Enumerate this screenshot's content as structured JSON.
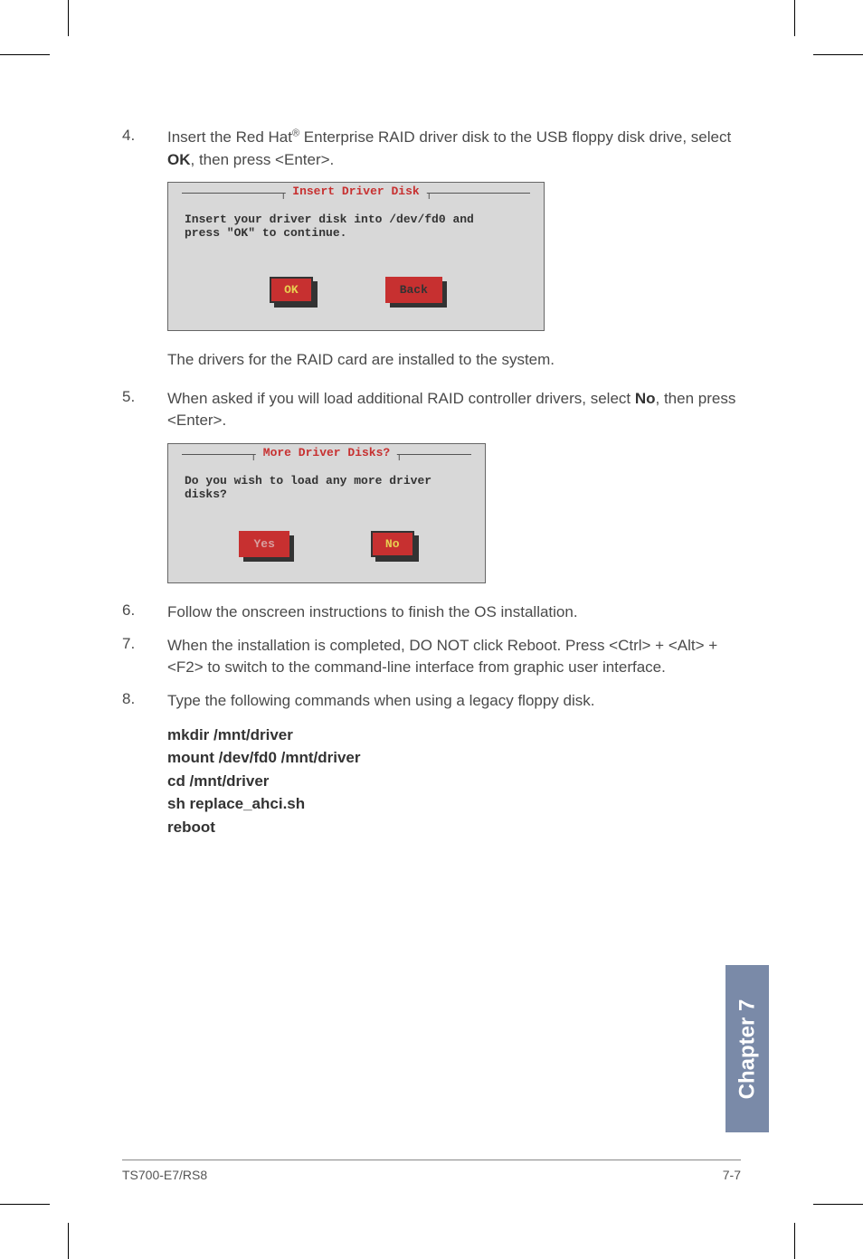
{
  "step4": {
    "num": "4.",
    "text_before": "Insert the Red Hat",
    "reg": "®",
    "text_mid": " Enterprise RAID driver disk to the USB floppy disk drive, select ",
    "bold": "OK",
    "text_after": ", then press <Enter>."
  },
  "dialog1": {
    "title": "Insert Driver Disk",
    "body_line1": "Insert your driver disk into /dev/fd0 and",
    "body_line2": "press \"OK\" to continue.",
    "ok": "OK",
    "back": "Back"
  },
  "para1": "The drivers for the RAID card are installed to the system.",
  "step5": {
    "num": "5.",
    "text_before": "When asked if you will load additional RAID controller drivers, select ",
    "bold": "No",
    "text_after": ", then press <Enter>."
  },
  "dialog2": {
    "title": "More Driver Disks?",
    "body_line1": "Do you wish to load any more driver",
    "body_line2": "disks?",
    "yes": "Yes",
    "no": "No"
  },
  "step6": {
    "num": "6.",
    "text": "Follow the onscreen instructions to finish the OS installation."
  },
  "step7": {
    "num": "7.",
    "text": "When the installation is completed, DO NOT click Reboot. Press <Ctrl> + <Alt> + <F2> to switch to the command-line interface from graphic user interface."
  },
  "step8": {
    "num": "8.",
    "text": "Type the following commands when using a legacy floppy disk."
  },
  "commands": {
    "l1": "mkdir /mnt/driver",
    "l2": "mount /dev/fd0 /mnt/driver",
    "l3": "cd /mnt/driver",
    "l4": "sh replace_ahci.sh",
    "l5": "reboot"
  },
  "side_tab": "Chapter 7",
  "footer_left": "TS700-E7/RS8",
  "footer_right": "7-7"
}
